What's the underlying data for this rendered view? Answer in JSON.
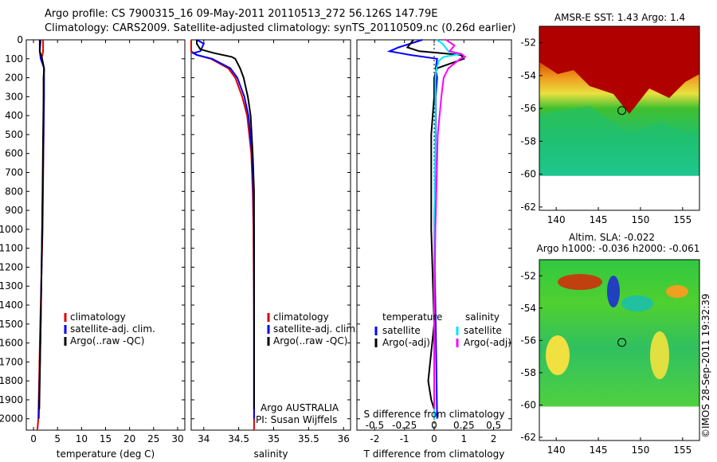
{
  "header": {
    "line1": "Argo profile: CS 7900315_16 09-May-2011 20110513_272 56.126S 147.79E",
    "line2": "Climatology: CARS2009. Satellite-adjusted climatology: synTS_20110509.nc (0.26d earlier)"
  },
  "depth_ticks": [
    "0",
    "100",
    "200",
    "300",
    "400",
    "500",
    "600",
    "700",
    "800",
    "900",
    "1000",
    "1100",
    "1200",
    "1300",
    "1400",
    "1500",
    "1600",
    "1700",
    "1800",
    "1900",
    "2000"
  ],
  "colors": {
    "climatology": "#e00000",
    "satellite": "#0000ff",
    "argo": "#000000",
    "salinity_sat": "#00e5ff",
    "salinity_argo": "#ff00ff"
  },
  "chart_data": [
    {
      "type": "line",
      "xlabel": "temperature (deg C)",
      "x_ticks": [
        "0",
        "5",
        "10",
        "15",
        "20",
        "25",
        "30"
      ],
      "xlim": [
        -1.5,
        31.5
      ],
      "ylim": [
        2060,
        0
      ],
      "legend": [
        "climatology",
        "satellite-adj. clim.",
        "Argo(..raw -QC)"
      ],
      "series": [
        {
          "name": "climatology",
          "color": "#e00000",
          "depth": [
            0,
            60,
            100,
            150,
            200,
            300,
            500,
            1000,
            1500,
            2000,
            2060
          ],
          "values": [
            2.0,
            2.0,
            1.7,
            2.2,
            2.1,
            2.1,
            2.1,
            1.9,
            1.4,
            1.0,
            0.8
          ]
        },
        {
          "name": "satellite-adj. clim.",
          "color": "#0000ff",
          "depth": [
            0,
            60,
            100,
            150,
            200,
            300,
            500,
            1000,
            1500,
            2000
          ],
          "values": [
            1.5,
            1.3,
            1.5,
            2.2,
            2.2,
            2.2,
            2.1,
            1.8,
            1.5,
            1.1
          ]
        },
        {
          "name": "Argo(..raw -QC)",
          "color": "#000000",
          "depth": [
            0,
            60,
            100,
            150,
            200,
            300,
            500,
            1000,
            1500,
            1950
          ],
          "values": [
            1.3,
            1.3,
            1.8,
            2.2,
            2.1,
            2.1,
            2.0,
            1.8,
            1.5,
            1.2
          ]
        }
      ]
    },
    {
      "type": "line",
      "xlabel": "salinity",
      "x_ticks": [
        "34",
        "34.5",
        "35",
        "35.5",
        "36"
      ],
      "xlim": [
        33.82,
        36.1
      ],
      "ylim": [
        2060,
        0
      ],
      "legend": [
        "climatology",
        "satellite-adj. clim.",
        "Argo(..raw -QC)"
      ],
      "series": [
        {
          "name": "climatology",
          "color": "#e00000",
          "depth": [
            0,
            20,
            60,
            80,
            100,
            150,
            200,
            300,
            400,
            600,
            800,
            1000,
            1500,
            2060
          ],
          "values": [
            33.82,
            33.82,
            33.82,
            33.9,
            34.1,
            34.35,
            34.45,
            34.55,
            34.62,
            34.68,
            34.7,
            34.71,
            34.72,
            34.72
          ]
        },
        {
          "name": "satellite-adj. clim.",
          "color": "#0000ff",
          "depth": [
            0,
            20,
            60,
            70,
            80,
            100,
            150,
            200,
            300,
            400,
            600,
            800,
            1000,
            1500,
            2000
          ],
          "values": [
            33.9,
            34.0,
            33.95,
            33.85,
            33.9,
            34.12,
            34.38,
            34.48,
            34.58,
            34.64,
            34.69,
            34.71,
            34.72,
            34.72,
            34.72
          ]
        },
        {
          "name": "Argo(..raw -QC)",
          "color": "#000000",
          "depth": [
            0,
            20,
            50,
            70,
            90,
            100,
            150,
            200,
            300,
            400,
            600,
            800,
            1000,
            1500,
            1950
          ],
          "values": [
            33.9,
            33.9,
            33.95,
            34.15,
            34.4,
            34.45,
            34.52,
            34.57,
            34.63,
            34.67,
            34.7,
            34.72,
            34.72,
            34.72,
            34.72
          ]
        }
      ],
      "annotation": [
        "Argo AUSTRALIA",
        "PI: Susan Wijffels"
      ]
    },
    {
      "type": "line",
      "xlabel": "T difference from climatology",
      "x_ticks": [
        "-2",
        "-1",
        "0",
        "1",
        "2"
      ],
      "xlim": [
        -2.6,
        2.6
      ],
      "top_label": "S difference from climatology",
      "top_ticks": [
        "-0.5",
        "-0.25",
        "0",
        "0.25",
        "0.5"
      ],
      "top_xlim": [
        -0.65,
        0.65
      ],
      "ylim": [
        2060,
        0
      ],
      "legend_groups": [
        {
          "title": "temperature",
          "entries": [
            "satellite",
            "Argo(-adj)"
          ]
        },
        {
          "title": "salinity",
          "entries": [
            "satellite",
            "Argo(-adj)"
          ]
        }
      ],
      "series": [
        {
          "name": "satellite",
          "quantity": "temperature",
          "color": "#0000ff",
          "depth": [
            0,
            40,
            60,
            80,
            100,
            150,
            200,
            300,
            500,
            1000,
            1500,
            2000
          ],
          "values": [
            -0.4,
            -1.2,
            -1.5,
            -0.8,
            0.1,
            0.05,
            0.1,
            0.05,
            0.05,
            0.0,
            0.05,
            0.1
          ]
        },
        {
          "name": "Argo(-adj)",
          "quantity": "temperature",
          "color": "#000000",
          "depth": [
            0,
            40,
            60,
            80,
            100,
            150,
            200,
            300,
            500,
            1000,
            1500,
            1800,
            1900,
            1950
          ],
          "values": [
            -0.7,
            -0.9,
            -0.5,
            0.9,
            1.0,
            0.1,
            0.0,
            0.0,
            -0.1,
            -0.1,
            0.0,
            -0.2,
            -0.1,
            0.0
          ]
        },
        {
          "name": "satellite",
          "quantity": "salinity",
          "color": "#00e5ff",
          "depth": [
            0,
            20,
            60,
            75,
            90,
            110,
            150,
            200,
            300,
            500,
            1000,
            1500,
            2000
          ],
          "values": [
            0.02,
            0.07,
            0.12,
            0.22,
            0.08,
            0.04,
            0.02,
            0.01,
            0.01,
            0.01,
            0.0,
            0.0,
            0.0
          ]
        },
        {
          "name": "Argo(-adj)",
          "quantity": "salinity",
          "color": "#ff00ff",
          "depth": [
            0,
            30,
            60,
            75,
            90,
            100,
            150,
            200,
            300,
            500,
            1000,
            1500,
            1950
          ],
          "values": [
            0.1,
            0.17,
            0.13,
            0.23,
            0.26,
            0.22,
            0.12,
            0.08,
            0.06,
            0.03,
            0.01,
            0.0,
            0.0
          ]
        }
      ]
    }
  ],
  "maps": [
    {
      "title": "AMSR-E SST: 1.43 Argo: 1.4",
      "x_ticks": [
        "140",
        "145",
        "150",
        "155"
      ],
      "y_ticks": [
        "-52",
        "-54",
        "-56",
        "-58",
        "-60",
        "-62"
      ],
      "argo_marker": {
        "lon": 147.79,
        "lat": -56.126
      }
    },
    {
      "title1": "Altim. SLA: -0.022",
      "title2": "Argo h1000: -0.036 h2000: -0.061",
      "x_ticks": [
        "140",
        "145",
        "150",
        "155"
      ],
      "y_ticks": [
        "-52",
        "-54",
        "-56",
        "-58",
        "-60",
        "-62"
      ],
      "argo_marker": {
        "lon": 147.79,
        "lat": -56.126
      }
    }
  ],
  "timestamp": "©IMOS 28-Sep-2011 19:32:39"
}
